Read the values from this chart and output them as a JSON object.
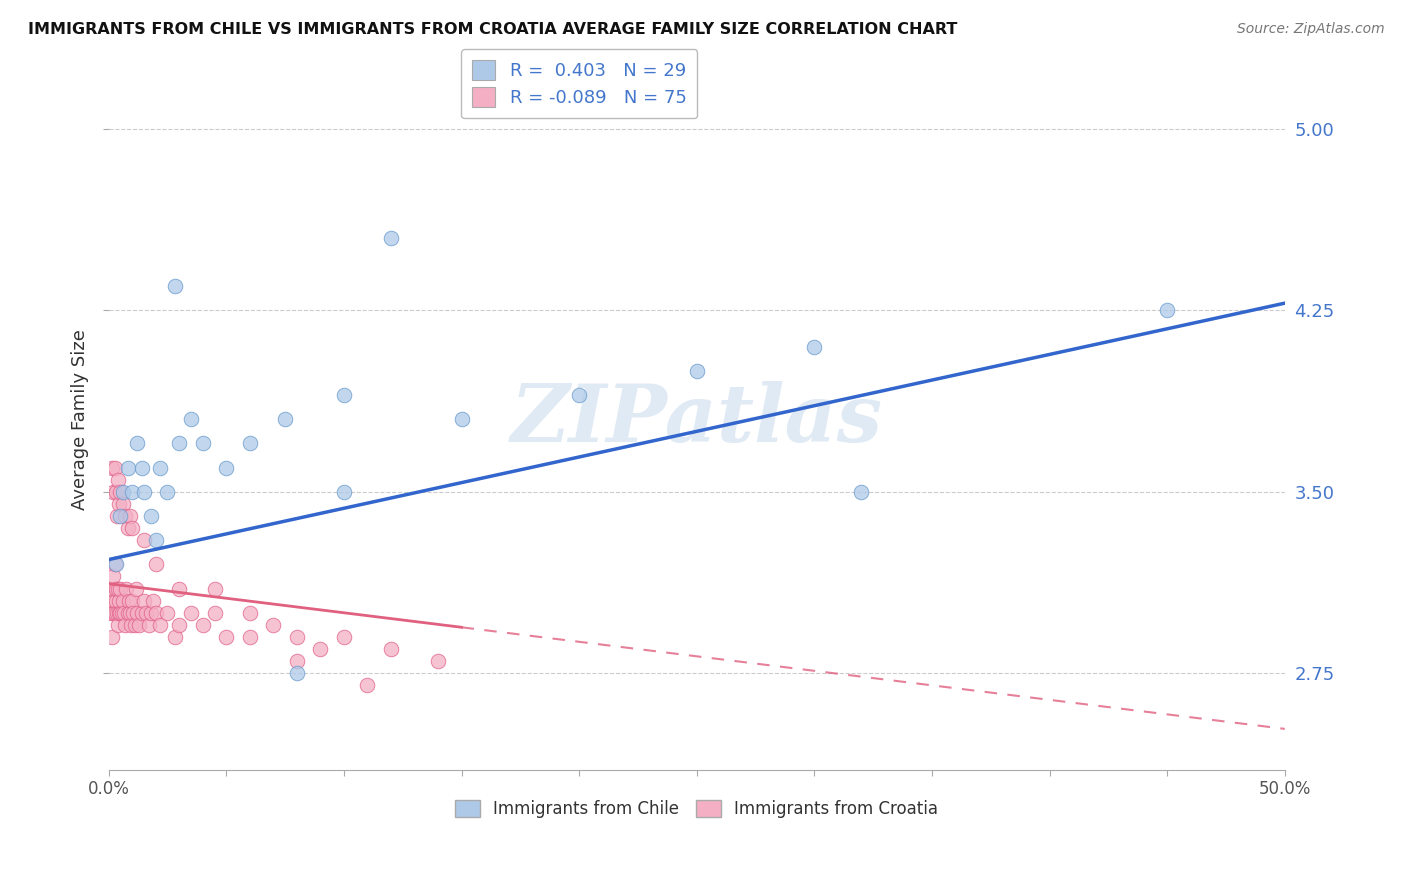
{
  "title": "IMMIGRANTS FROM CHILE VS IMMIGRANTS FROM CROATIA AVERAGE FAMILY SIZE CORRELATION CHART",
  "source": "Source: ZipAtlas.com",
  "ylabel": "Average Family Size",
  "xlim": [
    0.0,
    50.0
  ],
  "ylim": [
    2.35,
    5.25
  ],
  "yticks": [
    2.75,
    3.5,
    4.25,
    5.0
  ],
  "chile_color": "#aec9e8",
  "chile_edge": "#6699cc",
  "croatia_color": "#f4afc4",
  "croatia_edge": "#e06088",
  "chile_R": 0.403,
  "chile_N": 29,
  "croatia_R": -0.089,
  "croatia_N": 75,
  "watermark": "ZIPatlas",
  "watermark_color": "#ccdcee",
  "title_color": "#111111",
  "right_tick_color": "#4477cc",
  "grid_color": "#cccccc",
  "legend_label_color": "#4477cc",
  "blue_line_color": "#3366cc",
  "pink_line_color": "#e06080",
  "chile_line_x0": 0.0,
  "chile_line_y0": 3.22,
  "chile_line_x1": 50.0,
  "chile_line_y1": 4.28,
  "croatia_line_x0": 0.0,
  "croatia_line_y0": 3.12,
  "croatia_line_x1": 50.0,
  "croatia_line_y1": 2.52,
  "croatia_solid_end_x": 15.0,
  "chile_scatter_x": [
    0.3,
    0.5,
    0.6,
    0.8,
    1.0,
    1.2,
    1.4,
    1.5,
    1.8,
    2.0,
    2.2,
    2.5,
    3.0,
    3.5,
    4.0,
    5.0,
    6.0,
    7.5,
    10.0,
    12.0,
    15.0,
    20.0,
    25.0,
    30.0,
    32.0,
    10.0,
    8.0,
    45.0,
    2.8
  ],
  "chile_scatter_y": [
    3.2,
    3.4,
    3.5,
    3.6,
    3.5,
    3.7,
    3.6,
    3.5,
    3.4,
    3.3,
    3.6,
    3.5,
    3.7,
    3.8,
    3.7,
    3.6,
    3.7,
    3.8,
    3.9,
    4.55,
    3.8,
    3.9,
    4.0,
    4.1,
    3.5,
    3.5,
    2.75,
    4.25,
    4.35
  ],
  "croatia_scatter_x": [
    0.05,
    0.1,
    0.12,
    0.15,
    0.18,
    0.2,
    0.22,
    0.25,
    0.28,
    0.3,
    0.32,
    0.35,
    0.38,
    0.4,
    0.42,
    0.45,
    0.48,
    0.5,
    0.55,
    0.6,
    0.65,
    0.7,
    0.75,
    0.8,
    0.85,
    0.9,
    0.95,
    1.0,
    1.05,
    1.1,
    1.15,
    1.2,
    1.3,
    1.4,
    1.5,
    1.6,
    1.7,
    1.8,
    1.9,
    2.0,
    2.2,
    2.5,
    2.8,
    3.0,
    3.5,
    4.0,
    4.5,
    5.0,
    6.0,
    7.0,
    8.0,
    9.0,
    10.0,
    12.0,
    14.0,
    0.15,
    0.2,
    0.25,
    0.3,
    0.35,
    0.4,
    0.45,
    0.5,
    0.6,
    0.7,
    0.8,
    0.9,
    1.0,
    1.5,
    2.0,
    3.0,
    4.5,
    6.0,
    8.0,
    11.0
  ],
  "croatia_scatter_y": [
    3.1,
    3.0,
    2.9,
    3.1,
    3.0,
    3.15,
    3.05,
    3.2,
    3.0,
    3.05,
    3.1,
    3.0,
    2.95,
    3.1,
    3.0,
    3.05,
    3.0,
    3.1,
    3.0,
    3.05,
    3.0,
    2.95,
    3.1,
    3.0,
    3.05,
    3.0,
    2.95,
    3.05,
    3.0,
    2.95,
    3.1,
    3.0,
    2.95,
    3.0,
    3.05,
    3.0,
    2.95,
    3.0,
    3.05,
    3.0,
    2.95,
    3.0,
    2.9,
    2.95,
    3.0,
    2.95,
    3.1,
    2.9,
    3.0,
    2.95,
    2.9,
    2.85,
    2.9,
    2.85,
    2.8,
    3.6,
    3.5,
    3.6,
    3.5,
    3.4,
    3.55,
    3.45,
    3.5,
    3.45,
    3.4,
    3.35,
    3.4,
    3.35,
    3.3,
    3.2,
    3.1,
    3.0,
    2.9,
    2.8,
    2.7
  ]
}
